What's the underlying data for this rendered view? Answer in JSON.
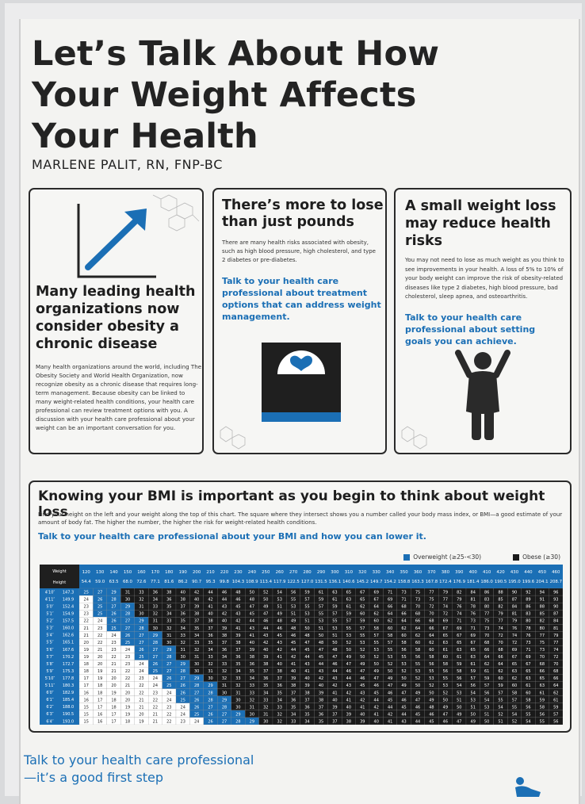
{
  "poster": {
    "title_lines": [
      "Let’s Talk About How",
      "Your Weight Affects",
      "Your Health"
    ],
    "author": "MARLENE PALIT, RN, FNP-BC"
  },
  "cards": [
    {
      "heading": "Many leading health organizations now consider obesity a chronic disease",
      "body": "Many health organizations around the world, including The Obesity Society and World Health Organization, now recognize obesity as a chronic disease that requires long-term management. Because obesity can be linked to many weight-related health conditions, your health care professional can review treatment options with you. A discussion with your health care professional about your weight can be an important conversation for you.",
      "icon": "trend-up-arrow-icon"
    },
    {
      "heading": "There’s more to lose than just pounds",
      "body": "There are many health risks associated with obesity, such as high blood pressure, high cholesterol, and type 2 diabetes or pre-diabetes.",
      "cta": "Talk to your health care professional about treatment options that can address weight management.",
      "icon": "scale-heart-icon"
    },
    {
      "heading": "A small weight loss may reduce health risks",
      "body": "You may not need to lose as much weight as you think to see improvements in your health. A loss of 5% to 10% of your body weight can improve the risk of obesity-related diseases like type 2 diabetes, high blood pressure, bad cholesterol, sleep apnea, and osteoarthritis.",
      "cta": "Talk to your health care professional about setting goals you can achieve.",
      "icon": "person-arms-up-icon"
    }
  ],
  "bmi": {
    "heading": "Knowing your BMI is important as you begin to think about weight loss",
    "body": "Find your height on the left and your weight along the top of this chart. The square where they intersect shows you a number called your body mass index, or BMI—a good estimate of your amount of body fat. The higher the number, the higher the risk for weight-related health conditions.",
    "cta": "Talk to your health care professional about your BMI and how you can lower it.",
    "legend": [
      {
        "label": "Overweight (≥25-<30)",
        "color": "#1b6fb5"
      },
      {
        "label": "Obese (≥30)",
        "color": "#1a1a1a"
      }
    ],
    "table": {
      "corner_weight": "Weight",
      "corner_height": "Height",
      "weights_lb": [
        120,
        130,
        140,
        150,
        160,
        170,
        180,
        190,
        200,
        210,
        220,
        230,
        240,
        250,
        260,
        270,
        280,
        290,
        300,
        310,
        320,
        330,
        340,
        350,
        360,
        370,
        380,
        390,
        400,
        410,
        420,
        430,
        440,
        450,
        460
      ],
      "heights_in": [
        58,
        59,
        60,
        61,
        62,
        63,
        64,
        65,
        66,
        67,
        68,
        69,
        70,
        71,
        72,
        73,
        74,
        75,
        76
      ]
    }
  },
  "footer": {
    "line1": "Talk to your health care professional",
    "line2": "—it’s a good first step"
  },
  "colors": {
    "accent": "#1b6fb5",
    "dark": "#1a1a1a",
    "normal_row": "#ffffff"
  }
}
